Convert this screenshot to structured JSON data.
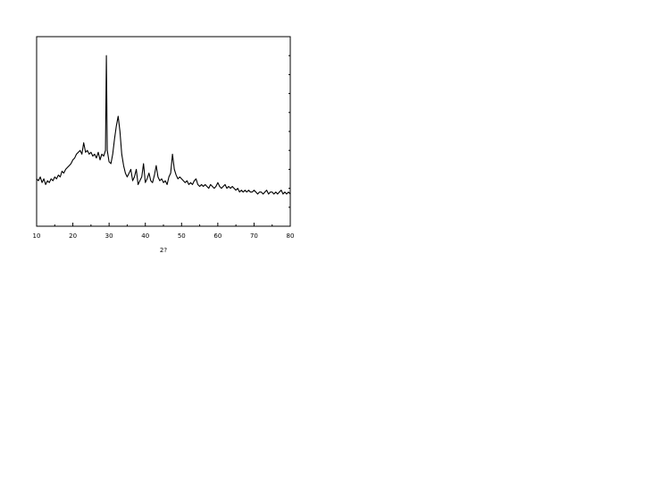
{
  "chart_data": {
    "type": "line",
    "title": "",
    "xlabel": "2?",
    "ylabel": "",
    "xlim": [
      10,
      80
    ],
    "ylim": [
      0,
      100
    ],
    "x_ticks": [
      "10",
      "20",
      "30",
      "40",
      "50",
      "60",
      "70",
      "80"
    ],
    "y_ticks": [],
    "grid": false,
    "legend": "none",
    "line_color": "#000000",
    "series": [
      {
        "points": [
          [
            10,
            25
          ],
          [
            10.5,
            24
          ],
          [
            11,
            26
          ],
          [
            11.5,
            23
          ],
          [
            12,
            25
          ],
          [
            12.5,
            22
          ],
          [
            13,
            24
          ],
          [
            13.5,
            23
          ],
          [
            14,
            25
          ],
          [
            14.5,
            24
          ],
          [
            15,
            26
          ],
          [
            15.5,
            25
          ],
          [
            16,
            27
          ],
          [
            16.5,
            26
          ],
          [
            17,
            29
          ],
          [
            17.5,
            28
          ],
          [
            18,
            30
          ],
          [
            18.5,
            31
          ],
          [
            19,
            32
          ],
          [
            19.5,
            33
          ],
          [
            20,
            35
          ],
          [
            20.5,
            36
          ],
          [
            21,
            38
          ],
          [
            21.5,
            39
          ],
          [
            22,
            40
          ],
          [
            22.5,
            38
          ],
          [
            23,
            44
          ],
          [
            23.5,
            39
          ],
          [
            24,
            40
          ],
          [
            24.5,
            38
          ],
          [
            25,
            39
          ],
          [
            25.5,
            37
          ],
          [
            26,
            38
          ],
          [
            26.5,
            36
          ],
          [
            27,
            39
          ],
          [
            27.5,
            35
          ],
          [
            28,
            38
          ],
          [
            28.5,
            37
          ],
          [
            29,
            40
          ],
          [
            29.25,
            90
          ],
          [
            29.5,
            40
          ],
          [
            30,
            34
          ],
          [
            30.5,
            33
          ],
          [
            31,
            38
          ],
          [
            31.5,
            46
          ],
          [
            32,
            53
          ],
          [
            32.5,
            58
          ],
          [
            33,
            50
          ],
          [
            33.5,
            38
          ],
          [
            34,
            32
          ],
          [
            34.5,
            28
          ],
          [
            35,
            26
          ],
          [
            35.5,
            28
          ],
          [
            36,
            30
          ],
          [
            36.5,
            24
          ],
          [
            37,
            26
          ],
          [
            37.5,
            30
          ],
          [
            38,
            22
          ],
          [
            38.5,
            24
          ],
          [
            39,
            26
          ],
          [
            39.5,
            33
          ],
          [
            40,
            23
          ],
          [
            40.5,
            25
          ],
          [
            41,
            28
          ],
          [
            41.5,
            24
          ],
          [
            42,
            23
          ],
          [
            42.5,
            27
          ],
          [
            43,
            32
          ],
          [
            43.5,
            26
          ],
          [
            44,
            24
          ],
          [
            44.5,
            25
          ],
          [
            45,
            23
          ],
          [
            45.5,
            24
          ],
          [
            46,
            22
          ],
          [
            46.5,
            26
          ],
          [
            47,
            28
          ],
          [
            47.5,
            38
          ],
          [
            48,
            30
          ],
          [
            48.5,
            27
          ],
          [
            49,
            25
          ],
          [
            49.5,
            26
          ],
          [
            50,
            25
          ],
          [
            50.5,
            24
          ],
          [
            51,
            23
          ],
          [
            51.5,
            24
          ],
          [
            52,
            22
          ],
          [
            52.5,
            23
          ],
          [
            53,
            22
          ],
          [
            53.5,
            24
          ],
          [
            54,
            25
          ],
          [
            54.5,
            22
          ],
          [
            55,
            21
          ],
          [
            55.5,
            22
          ],
          [
            56,
            21
          ],
          [
            56.5,
            22
          ],
          [
            57,
            21
          ],
          [
            57.5,
            20
          ],
          [
            58,
            22
          ],
          [
            58.5,
            21
          ],
          [
            59,
            20
          ],
          [
            59.5,
            21
          ],
          [
            60,
            23
          ],
          [
            60.5,
            21
          ],
          [
            61,
            20
          ],
          [
            61.5,
            21
          ],
          [
            62,
            22
          ],
          [
            62.5,
            20
          ],
          [
            63,
            21
          ],
          [
            63.5,
            20
          ],
          [
            64,
            21
          ],
          [
            64.5,
            20
          ],
          [
            65,
            19
          ],
          [
            65.5,
            20
          ],
          [
            66,
            18
          ],
          [
            66.5,
            19
          ],
          [
            67,
            18
          ],
          [
            67.5,
            19
          ],
          [
            68,
            18
          ],
          [
            68.5,
            19
          ],
          [
            69,
            18
          ],
          [
            69.5,
            18
          ],
          [
            70,
            19
          ],
          [
            70.5,
            18
          ],
          [
            71,
            17
          ],
          [
            71.5,
            18
          ],
          [
            72,
            18
          ],
          [
            72.5,
            17
          ],
          [
            73,
            18
          ],
          [
            73.5,
            19
          ],
          [
            74,
            17
          ],
          [
            74.5,
            18
          ],
          [
            75,
            18
          ],
          [
            75.5,
            17
          ],
          [
            76,
            18
          ],
          [
            76.5,
            17
          ],
          [
            77,
            18
          ],
          [
            77.5,
            19
          ],
          [
            78,
            17
          ],
          [
            78.5,
            18
          ],
          [
            79,
            17
          ],
          [
            79.5,
            18
          ],
          [
            80,
            17
          ]
        ]
      }
    ]
  }
}
